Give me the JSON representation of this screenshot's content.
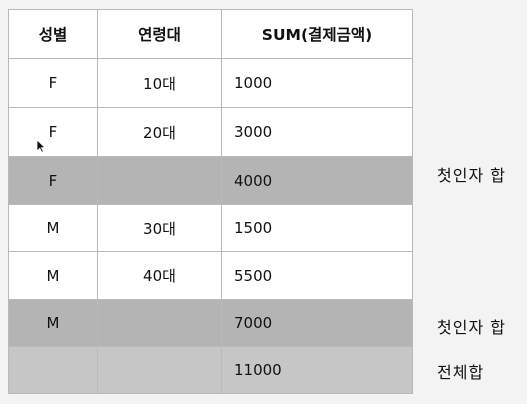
{
  "headers": [
    "성별",
    "연령대",
    "SUM(결제금액)"
  ],
  "rows": [
    {
      "gender": "F",
      "age": "10대",
      "sum": "1000"
    },
    {
      "gender": "F",
      "age": "20대",
      "sum": "3000"
    },
    {
      "gender": "F",
      "age": "",
      "sum": "4000"
    },
    {
      "gender": "M",
      "age": "30대",
      "sum": "1500"
    },
    {
      "gender": "M",
      "age": "40대",
      "sum": "5500"
    },
    {
      "gender": "M",
      "age": "",
      "sum": "7000"
    },
    {
      "gender": "",
      "age": "",
      "sum": "11000"
    }
  ],
  "notes": {
    "subtotal_f": "첫인자 합",
    "subtotal_m": "첫인자 합",
    "grand_total": "전체합"
  },
  "colors": {
    "subtotal_row": "#b4b4b4",
    "total_row": "#c6c6c6",
    "border": "#b9b9b9"
  },
  "icons": {
    "cursor": "mouse-pointer-icon"
  }
}
